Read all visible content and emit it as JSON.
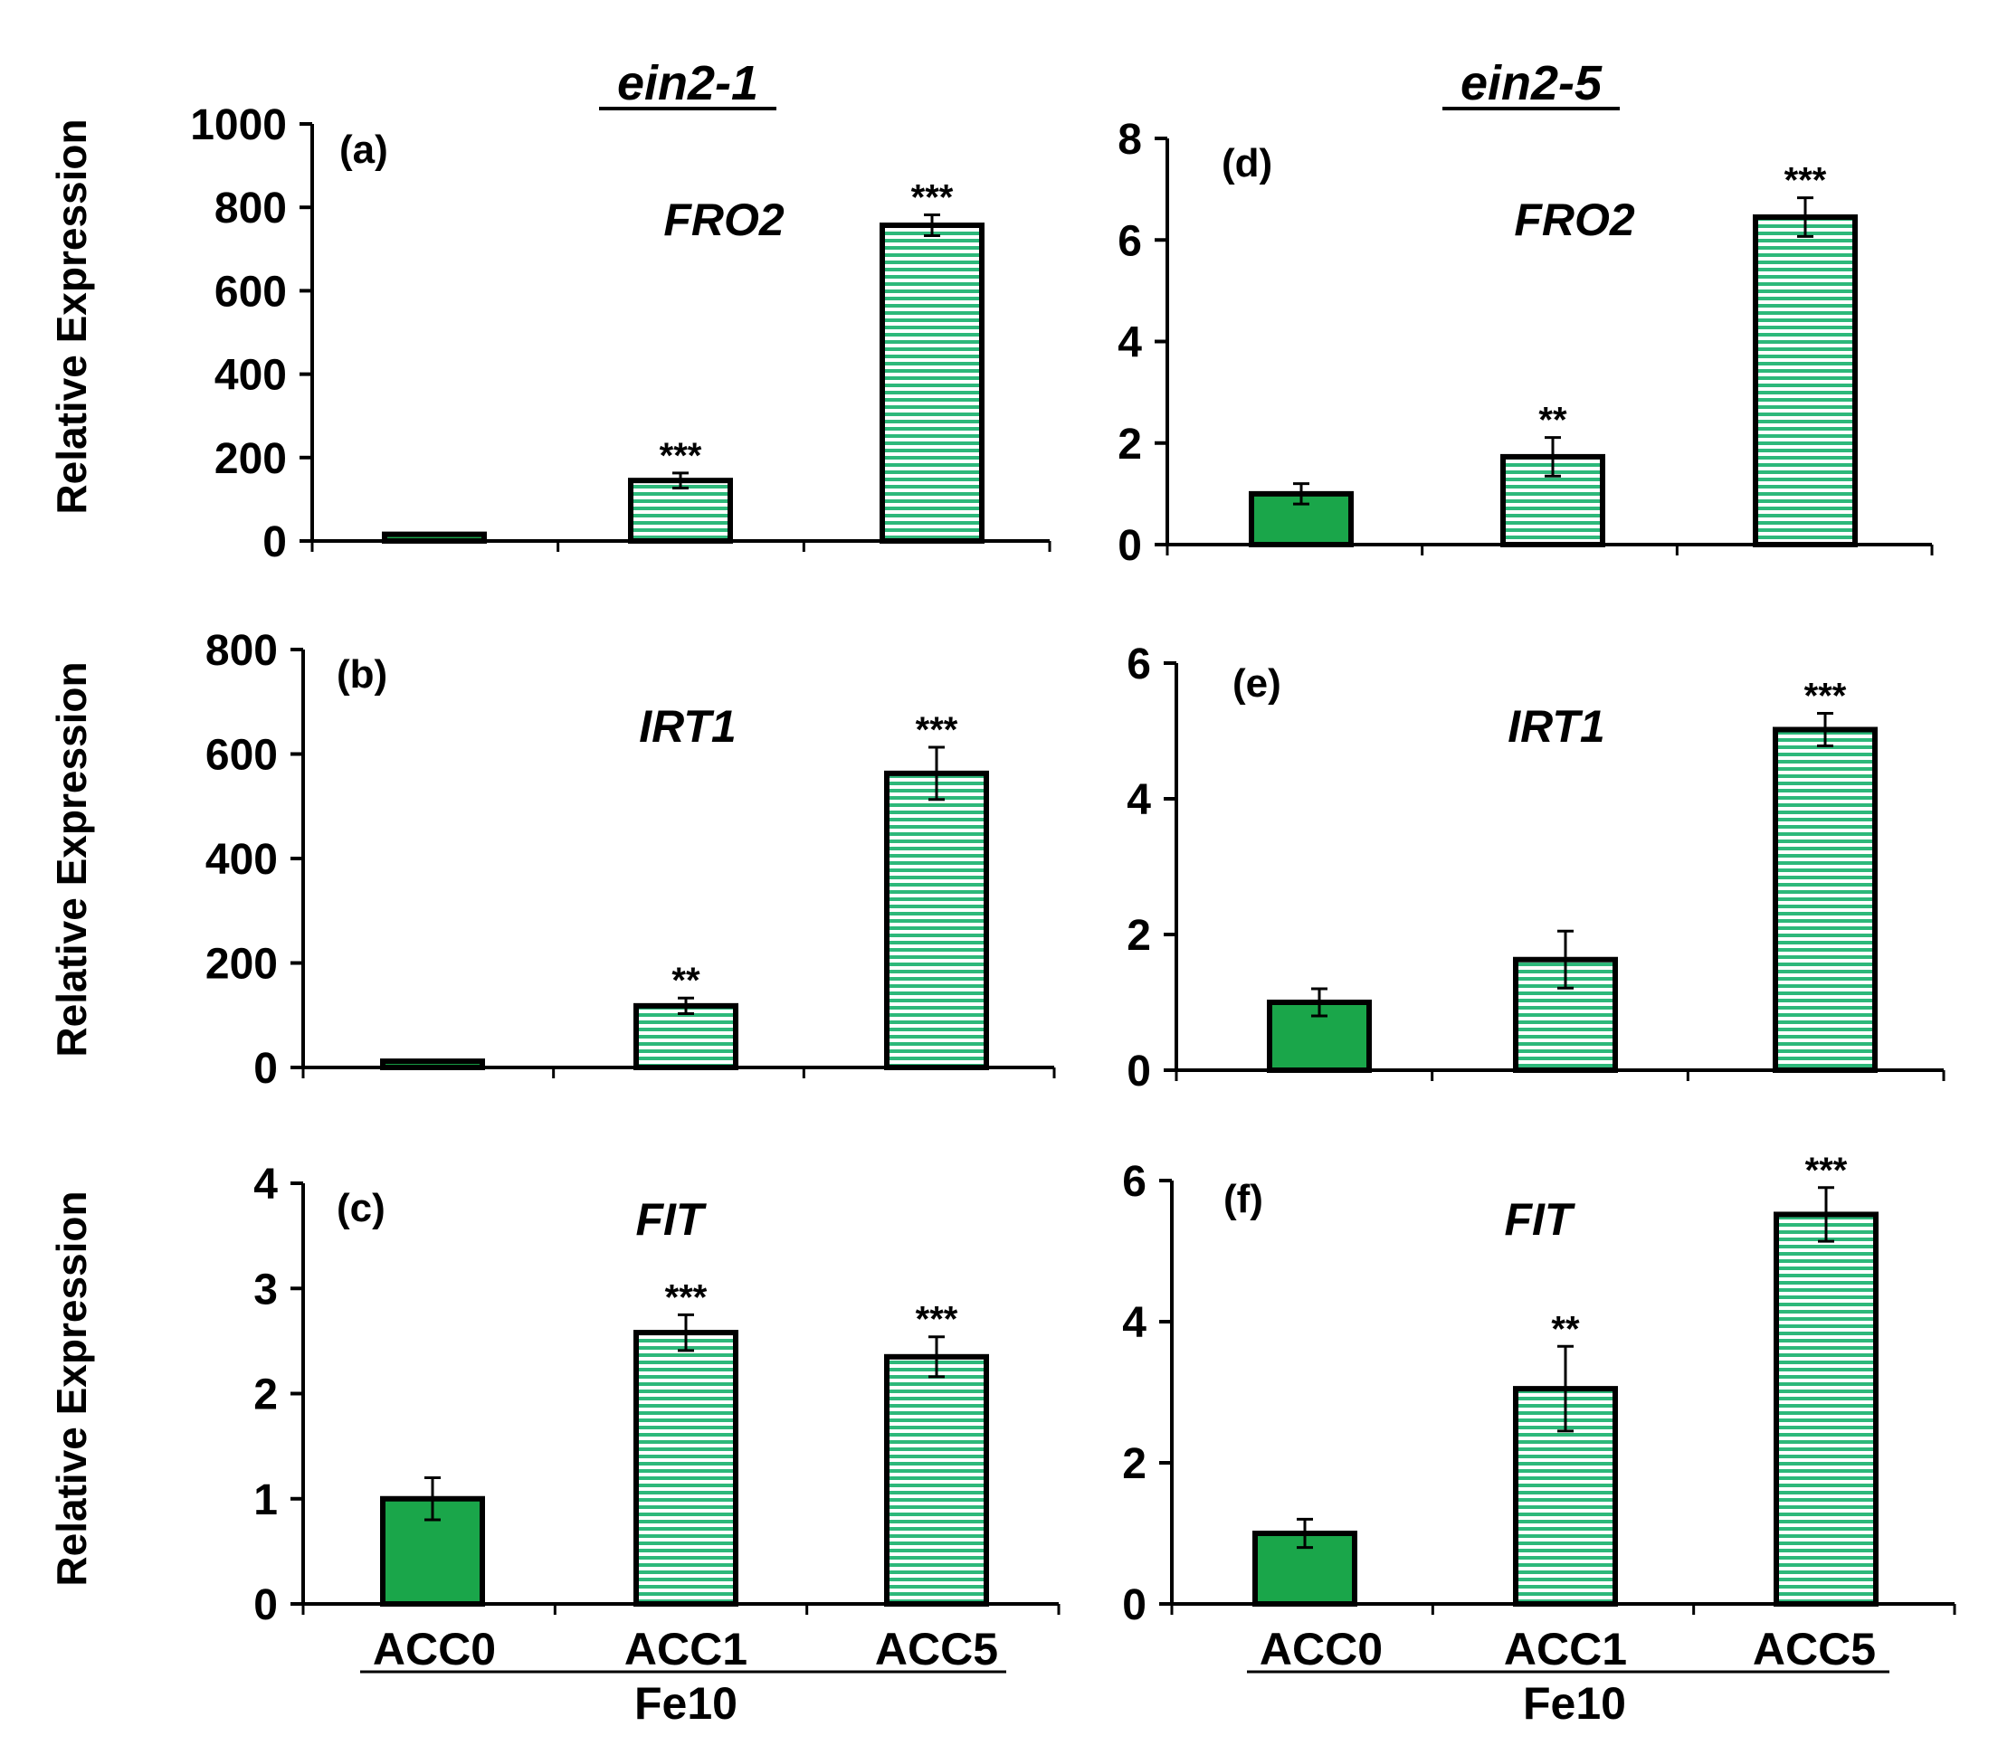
{
  "colors": {
    "solid": "#1aa64a",
    "stripe": "#2db87a",
    "stripe_bg": "#ffffff",
    "axis": "#000000"
  },
  "column_titles": [
    "ein2-1",
    "ein2-5"
  ],
  "group_label": "Fe10",
  "chart_data": [
    {
      "type": "bar",
      "panel": "(a)",
      "title": "FRO2",
      "column": "ein2-1",
      "ylabel": "Relative Expression",
      "xlabel": "",
      "categories": [
        "ACC0",
        "ACC1",
        "ACC5"
      ],
      "values": [
        16,
        145,
        757
      ],
      "errors": [
        0,
        18,
        25
      ],
      "significance": [
        "",
        "***",
        "***"
      ],
      "ylim": [
        0,
        1000
      ],
      "yticks": [
        0,
        200,
        400,
        600,
        800,
        1000
      ]
    },
    {
      "type": "bar",
      "panel": "(b)",
      "title": "IRT1",
      "column": "ein2-1",
      "ylabel": "Relative Expression",
      "xlabel": "",
      "categories": [
        "ACC0",
        "ACC1",
        "ACC5"
      ],
      "values": [
        12,
        118,
        563
      ],
      "errors": [
        0,
        15,
        50
      ],
      "significance": [
        "",
        "**",
        "***"
      ],
      "ylim": [
        0,
        800
      ],
      "yticks": [
        0,
        200,
        400,
        600,
        800
      ]
    },
    {
      "type": "bar",
      "panel": "(c)",
      "title": "FIT",
      "column": "ein2-1",
      "ylabel": "Relative Expression",
      "xlabel": "",
      "categories": [
        "ACC0",
        "ACC1",
        "ACC5"
      ],
      "values": [
        1.0,
        2.58,
        2.35
      ],
      "errors": [
        0.2,
        0.17,
        0.19
      ],
      "significance": [
        "",
        "***",
        "***"
      ],
      "ylim": [
        0,
        4
      ],
      "yticks": [
        0,
        1,
        2,
        3,
        4
      ]
    },
    {
      "type": "bar",
      "panel": "(d)",
      "title": "FRO2",
      "column": "ein2-5",
      "ylabel": "",
      "xlabel": "",
      "categories": [
        "ACC0",
        "ACC1",
        "ACC5"
      ],
      "values": [
        1.0,
        1.73,
        6.45
      ],
      "errors": [
        0.2,
        0.38,
        0.38
      ],
      "significance": [
        "",
        "**",
        "***"
      ],
      "ylim": [
        0,
        8
      ],
      "yticks": [
        0,
        2,
        4,
        6,
        8
      ]
    },
    {
      "type": "bar",
      "panel": "(e)",
      "title": "IRT1",
      "column": "ein2-5",
      "ylabel": "",
      "xlabel": "",
      "categories": [
        "ACC0",
        "ACC1",
        "ACC5"
      ],
      "values": [
        1.0,
        1.63,
        5.02
      ],
      "errors": [
        0.2,
        0.42,
        0.24
      ],
      "significance": [
        "",
        "",
        "***"
      ],
      "ylim": [
        0,
        6
      ],
      "yticks": [
        0,
        2,
        4,
        6
      ]
    },
    {
      "type": "bar",
      "panel": "(f)",
      "title": "FIT",
      "column": "ein2-5",
      "ylabel": "",
      "xlabel": "",
      "categories": [
        "ACC0",
        "ACC1",
        "ACC5"
      ],
      "values": [
        1.0,
        3.05,
        5.52
      ],
      "errors": [
        0.2,
        0.6,
        0.38
      ],
      "significance": [
        "",
        "**",
        "***"
      ],
      "ylim": [
        0,
        6
      ],
      "yticks": [
        0,
        2,
        4,
        6
      ]
    }
  ]
}
